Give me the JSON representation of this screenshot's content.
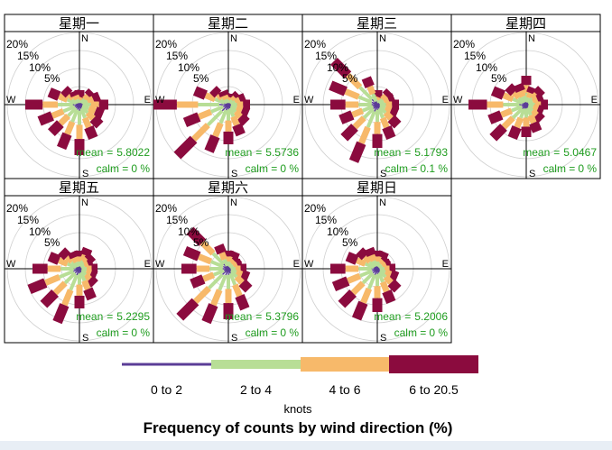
{
  "chart_data": {
    "type": "wind-rose",
    "title": "Frequency of counts by wind direction (%)",
    "legend_title": "knots",
    "legend_position": "bottom",
    "directions": [
      "N",
      "NNE",
      "NE",
      "ENE",
      "E",
      "ESE",
      "SE",
      "SSE",
      "S",
      "SSW",
      "SW",
      "WSW",
      "W",
      "WNW",
      "NW",
      "NNW"
    ],
    "compass_labels": [
      "N",
      "E",
      "S",
      "W"
    ],
    "ring_labels": [
      "20%",
      "15%",
      "10%",
      "5%"
    ],
    "ring_values": [
      5,
      10,
      15,
      20
    ],
    "speed_bins": [
      {
        "label": "0 to 2",
        "color": "#5b3d97"
      },
      {
        "label": "2 to 4",
        "color": "#b8de96"
      },
      {
        "label": "4 to 6",
        "color": "#f7b96a"
      },
      {
        "label": "6 to 20.5",
        "color": "#8b0b3e"
      }
    ],
    "panels": [
      {
        "name": "星期一",
        "mean_label": "mean",
        "mean_value": "5.8022",
        "calm_label": "calm =",
        "calm_value": "0 %",
        "totals": [
          4,
          3,
          5,
          6,
          8,
          7,
          8,
          10,
          14,
          13,
          11,
          12,
          15,
          9,
          6,
          4
        ]
      },
      {
        "name": "星期二",
        "mean_label": "mean",
        "mean_value": "5.5736",
        "calm_label": "calm =",
        "calm_value": "0 %",
        "totals": [
          3,
          3,
          4,
          5,
          6,
          6,
          7,
          9,
          11,
          14,
          20,
          13,
          21,
          10,
          6,
          4
        ]
      },
      {
        "name": "星期三",
        "mean_label": "mean",
        "mean_value": "5.1793",
        "calm_label": "calm =",
        "calm_value": "0.1 %",
        "totals": [
          4,
          3,
          5,
          5,
          6,
          6,
          8,
          10,
          12,
          17,
          13,
          11,
          13,
          14,
          17,
          8
        ]
      },
      {
        "name": "星期四",
        "mean_label": "mean",
        "mean_value": "5.0467",
        "calm_label": "calm =",
        "calm_value": "0 %",
        "totals": [
          8,
          5,
          6,
          5,
          6,
          5,
          6,
          8,
          9,
          10,
          13,
          11,
          16,
          10,
          7,
          6
        ]
      },
      {
        "name": "星期五",
        "mean_label": "mean",
        "mean_value": "5.2295",
        "calm_label": "calm =",
        "calm_value": "0 %",
        "totals": [
          5,
          6,
          5,
          4,
          5,
          5,
          6,
          9,
          11,
          16,
          14,
          15,
          13,
          9,
          7,
          5
        ]
      },
      {
        "name": "星期六",
        "mean_label": "mean",
        "mean_value": "5.3796",
        "calm_label": "calm =",
        "calm_value": "0 %",
        "totals": [
          5,
          5,
          4,
          4,
          5,
          6,
          8,
          12,
          14,
          16,
          19,
          11,
          13,
          13,
          15,
          7
        ]
      },
      {
        "name": "星期日",
        "mean_label": "mean",
        "mean_value": "5.2006",
        "calm_label": "calm =",
        "calm_value": "0 %",
        "totals": [
          5,
          5,
          4,
          4,
          5,
          6,
          8,
          10,
          12,
          15,
          14,
          13,
          13,
          9,
          7,
          6
        ]
      }
    ]
  }
}
